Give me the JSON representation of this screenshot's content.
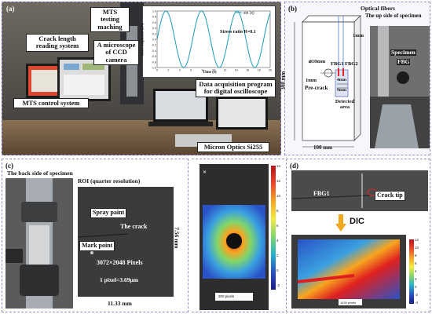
{
  "panels": {
    "a": {
      "id": "(a)",
      "labels": {
        "crack_length_system": "Crack length reading system",
        "mts_testing": "MTS testing maching",
        "microscope": "A microscope of CCD camera",
        "mts_control": "MTS control system",
        "data_acq": "Data acquisition program for digital oscilloscope",
        "micron_optics": "Micron Optics Si255"
      },
      "chart": {
        "legend": "sin (x)",
        "annotation": "Stress ratio R=0.1",
        "ylabel": "Stress amplitude (kN)",
        "xlabel": "Time (s)",
        "ytick_labels": [
          "1.0",
          "0.8",
          "0.6",
          "0.4",
          "0.2",
          "0.0",
          "-0.2",
          "-0.4",
          "-0.6",
          "-0.8",
          "-1.0"
        ],
        "xtick_labels": [
          "0",
          "2",
          "4",
          "6",
          "8",
          "10",
          "12",
          "14",
          "16",
          "18",
          "20"
        ]
      }
    },
    "b": {
      "id": "(b)",
      "labels": {
        "optical_fibers": "Optical fibers",
        "up_side": "The up side of specimen",
        "one_mm_top": "1mm",
        "diameter": "⌀10mm",
        "fbg1": "FBG1",
        "fbg2": "FBG2",
        "one_mm_left": "1mm",
        "precrack": "Pre-crack",
        "four_mm": "4mm",
        "nine_mm": "9mm",
        "detected_area": "Detected area",
        "height": "300 mm",
        "width": "100 mm",
        "specimen": "Specimen",
        "fbg": "FBG"
      }
    },
    "c": {
      "id": "(c)",
      "labels": {
        "back_side": "The  back side of specimen",
        "roi": "ROI (quarter resolution)",
        "spray_paint": "Spray paint",
        "the_crack": "The crack",
        "mark_point": "Mark point",
        "pixels": "3072×2048 Pixels",
        "pixel_size": "1 pixel=3.69μm",
        "height": "7.56 mm",
        "width": "11.33 mm"
      }
    },
    "dic_left": {
      "scale_label": "300 pixels",
      "colorbar_ticks": [
        "14",
        "12",
        "10",
        "8",
        "6",
        "4",
        "2",
        "0",
        "-2"
      ]
    },
    "d": {
      "id": "(d)",
      "labels": {
        "fbg1": "FBG1",
        "crack_tip": "Crack tip",
        "dic": "DIC",
        "scale_label": "1434 pixels"
      },
      "colorbar_ticks": [
        "12",
        "10",
        "8",
        "6",
        "4",
        "2",
        "0",
        "-2",
        "-4"
      ]
    }
  },
  "colors": {
    "panel_border": "#9b8ec8",
    "sine_curve": "#1a9bb8",
    "fbg_marker": "#e0262b",
    "dic_arrow": "#f0a81c"
  }
}
